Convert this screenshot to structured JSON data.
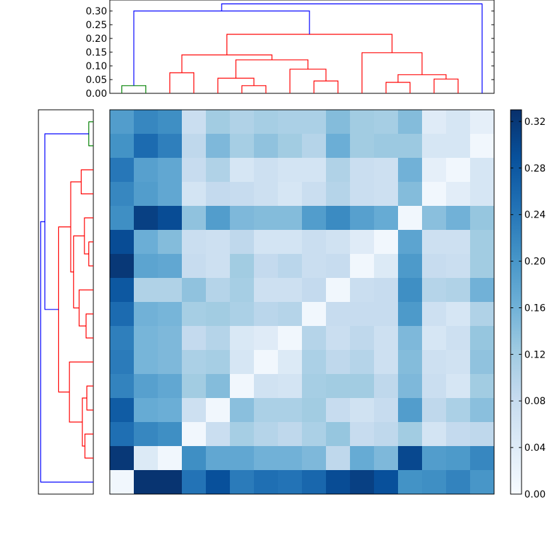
{
  "chart_data": [
    {
      "type": "dendrogram",
      "orientation": "top",
      "yticks": [
        0.0,
        0.05,
        0.1,
        0.15,
        0.2,
        0.25,
        0.3
      ],
      "ytick_labels": [
        "0.00",
        "0.05",
        "0.10",
        "0.15",
        "0.20",
        "0.25",
        "0.30"
      ],
      "ylim": [
        0,
        0.34
      ],
      "leaf_count": 16,
      "colors": {
        "root": "#0000ff",
        "cluster_a": "#008000",
        "cluster_b": "#ff0000"
      },
      "merges": [
        {
          "left": 0,
          "right": 1,
          "height": 0.028,
          "color": "#008000"
        },
        {
          "left": 2,
          "right": 3,
          "height": 0.075,
          "color": "#ff0000"
        },
        {
          "left": 5,
          "right": 6,
          "height": 0.028,
          "color": "#ff0000"
        },
        {
          "left": 4,
          "right": [
            5,
            6
          ],
          "height": 0.055,
          "color": "#ff0000"
        },
        {
          "left": 8,
          "right": 9,
          "height": 0.045,
          "color": "#ff0000"
        },
        {
          "left": 7,
          "right": [
            8,
            9
          ],
          "height": 0.088,
          "color": "#ff0000"
        },
        {
          "left": [
            4,
            6
          ],
          "right": [
            7,
            9
          ],
          "height": 0.122,
          "color": "#ff0000"
        },
        {
          "left": [
            2,
            3
          ],
          "right": [
            4,
            9
          ],
          "height": 0.14,
          "color": "#ff0000"
        },
        {
          "left": 11,
          "right": 12,
          "height": 0.04,
          "color": "#ff0000"
        },
        {
          "left": 13,
          "right": 14,
          "height": 0.052,
          "color": "#ff0000"
        },
        {
          "left": [
            11,
            12
          ],
          "right": [
            13,
            14
          ],
          "height": 0.068,
          "color": "#ff0000"
        },
        {
          "left": 10,
          "right": [
            11,
            14
          ],
          "height": 0.148,
          "color": "#ff0000"
        },
        {
          "left": [
            2,
            9
          ],
          "right": [
            10,
            14
          ],
          "height": 0.215,
          "color": "#ff0000"
        },
        {
          "left": [
            0,
            1
          ],
          "right": [
            2,
            14
          ],
          "height": 0.3,
          "color": "#0000ff"
        },
        {
          "left": 15,
          "right": [
            0,
            14
          ],
          "height": 0.326,
          "color": "#0000ff"
        }
      ]
    },
    {
      "type": "heatmap",
      "rows": 16,
      "cols": 16,
      "colormap": "Blues",
      "values": [
        [
          0.19,
          0.22,
          0.21,
          0.075,
          0.12,
          0.105,
          0.115,
          0.11,
          0.11,
          0.145,
          0.12,
          0.115,
          0.145,
          0.04,
          0.055,
          0.03
        ],
        [
          0.205,
          0.255,
          0.23,
          0.09,
          0.15,
          0.115,
          0.135,
          0.12,
          0.1,
          0.165,
          0.12,
          0.125,
          0.125,
          0.055,
          0.055,
          0.01
        ],
        [
          0.24,
          0.185,
          0.175,
          0.08,
          0.105,
          0.055,
          0.07,
          0.06,
          0.06,
          0.105,
          0.075,
          0.07,
          0.16,
          0.03,
          0.01,
          0.055
        ],
        [
          0.22,
          0.19,
          0.175,
          0.06,
          0.085,
          0.08,
          0.07,
          0.055,
          0.075,
          0.1,
          0.075,
          0.07,
          0.145,
          0.01,
          0.035,
          0.055
        ],
        [
          0.21,
          0.31,
          0.295,
          0.135,
          0.19,
          0.15,
          0.145,
          0.145,
          0.19,
          0.215,
          0.185,
          0.17,
          0.01,
          0.14,
          0.16,
          0.13
        ],
        [
          0.295,
          0.165,
          0.145,
          0.075,
          0.07,
          0.09,
          0.06,
          0.06,
          0.075,
          0.065,
          0.04,
          0.01,
          0.18,
          0.07,
          0.07,
          0.12
        ],
        [
          0.32,
          0.18,
          0.175,
          0.08,
          0.07,
          0.12,
          0.085,
          0.095,
          0.075,
          0.08,
          0.01,
          0.045,
          0.195,
          0.08,
          0.075,
          0.12
        ],
        [
          0.28,
          0.105,
          0.105,
          0.135,
          0.1,
          0.115,
          0.07,
          0.07,
          0.085,
          0.01,
          0.075,
          0.08,
          0.21,
          0.1,
          0.105,
          0.16
        ],
        [
          0.255,
          0.16,
          0.155,
          0.115,
          0.12,
          0.11,
          0.095,
          0.1,
          0.01,
          0.08,
          0.08,
          0.08,
          0.195,
          0.07,
          0.055,
          0.105
        ],
        [
          0.23,
          0.155,
          0.15,
          0.085,
          0.1,
          0.05,
          0.04,
          0.01,
          0.1,
          0.075,
          0.09,
          0.07,
          0.15,
          0.055,
          0.07,
          0.13
        ],
        [
          0.235,
          0.155,
          0.15,
          0.11,
          0.115,
          0.055,
          0.01,
          0.045,
          0.11,
          0.09,
          0.1,
          0.07,
          0.145,
          0.07,
          0.065,
          0.135
        ],
        [
          0.225,
          0.185,
          0.175,
          0.12,
          0.145,
          0.01,
          0.065,
          0.06,
          0.115,
          0.12,
          0.12,
          0.09,
          0.15,
          0.075,
          0.055,
          0.12
        ],
        [
          0.275,
          0.17,
          0.165,
          0.07,
          0.01,
          0.14,
          0.11,
          0.11,
          0.12,
          0.08,
          0.065,
          0.08,
          0.19,
          0.09,
          0.11,
          0.14
        ],
        [
          0.25,
          0.22,
          0.21,
          0.01,
          0.075,
          0.115,
          0.1,
          0.09,
          0.11,
          0.13,
          0.08,
          0.09,
          0.12,
          0.06,
          0.085,
          0.09
        ],
        [
          0.32,
          0.045,
          0.01,
          0.21,
          0.175,
          0.175,
          0.16,
          0.16,
          0.15,
          0.09,
          0.17,
          0.15,
          0.3,
          0.19,
          0.195,
          0.22
        ],
        [
          0.01,
          0.325,
          0.325,
          0.245,
          0.29,
          0.235,
          0.25,
          0.245,
          0.26,
          0.295,
          0.31,
          0.29,
          0.205,
          0.21,
          0.225,
          0.2
        ]
      ],
      "row_order": [
        0,
        1,
        2,
        3,
        4,
        5,
        6,
        7,
        8,
        9,
        10,
        11,
        12,
        13,
        14,
        15
      ]
    },
    {
      "type": "colorbar",
      "range": [
        0,
        0.33
      ],
      "ticks": [
        0.0,
        0.04,
        0.08,
        0.12,
        0.16,
        0.2,
        0.24,
        0.28,
        0.32
      ],
      "tick_labels": [
        "0.00",
        "0.04",
        "0.08",
        "0.12",
        "0.16",
        "0.20",
        "0.24",
        "0.28",
        "0.32"
      ]
    }
  ]
}
